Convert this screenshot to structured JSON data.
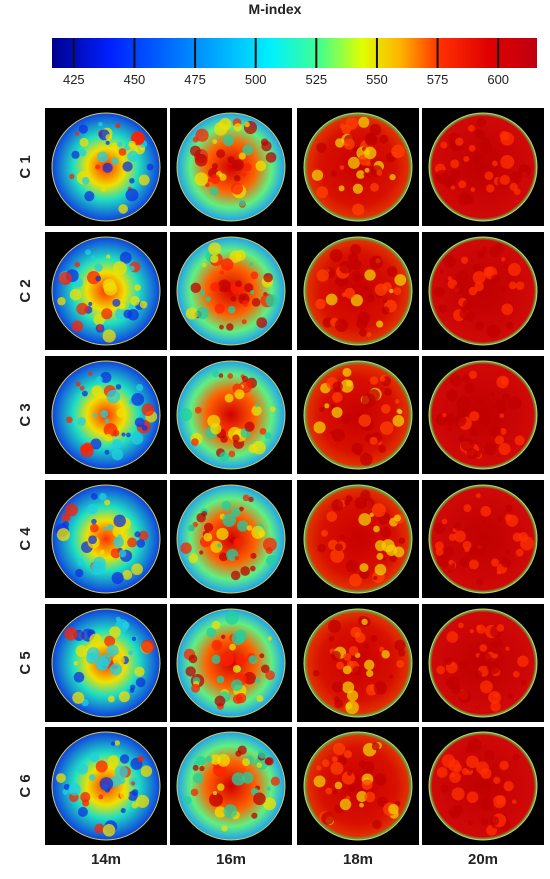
{
  "colorbar": {
    "title": "M-index",
    "range": [
      416,
      616
    ],
    "ticks": [
      425,
      450,
      475,
      500,
      525,
      550,
      575,
      600
    ]
  },
  "rows": [
    "C 1",
    "C 2",
    "C 3",
    "C 4",
    "C 5",
    "C 6"
  ],
  "columns": [
    "14m",
    "16m",
    "18m",
    "20m"
  ]
}
